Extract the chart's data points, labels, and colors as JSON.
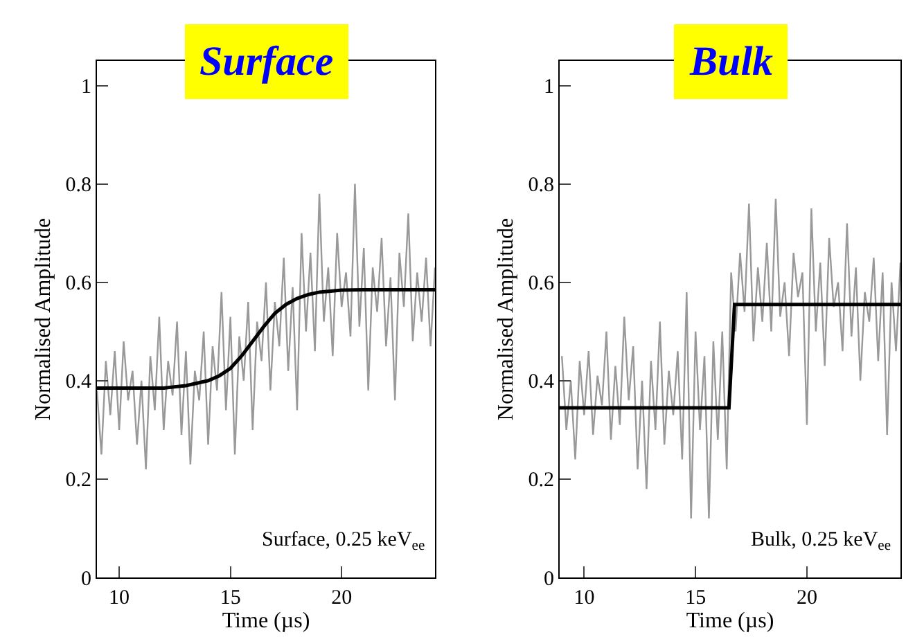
{
  "chart_data": [
    {
      "type": "line",
      "title": "Surface",
      "xlabel": "Time (µs)",
      "ylabel": "Normalised Amplitude",
      "annotations": [
        "Surface, 0.25 keV$_{ee}$"
      ],
      "xlim": [
        9,
        24.2
      ],
      "xticks": [
        10,
        15,
        20
      ],
      "ylim": [
        0,
        1.05
      ],
      "yticks": [
        0,
        0.2,
        0.4,
        0.6,
        0.8,
        1
      ],
      "grid": false,
      "marker": "none",
      "line_style": "solid",
      "series": [
        {
          "color": "#999999",
          "x": [
            9.0,
            9.2,
            9.4,
            9.6,
            9.8,
            10.0,
            10.2,
            10.4,
            10.6,
            10.8,
            11.0,
            11.2,
            11.4,
            11.6,
            11.8,
            12.0,
            12.2,
            12.4,
            12.6,
            12.8,
            13.0,
            13.2,
            13.4,
            13.6,
            13.8,
            14.0,
            14.2,
            14.4,
            14.6,
            14.8,
            15.0,
            15.2,
            15.4,
            15.6,
            15.8,
            16.0,
            16.2,
            16.4,
            16.6,
            16.8,
            17.0,
            17.2,
            17.4,
            17.6,
            17.8,
            18.0,
            18.2,
            18.4,
            18.6,
            18.8,
            19.0,
            19.2,
            19.4,
            19.6,
            19.8,
            20.0,
            20.2,
            20.4,
            20.6,
            20.8,
            21.0,
            21.2,
            21.4,
            21.6,
            21.8,
            22.0,
            22.2,
            22.4,
            22.6,
            22.8,
            23.0,
            23.2,
            23.4,
            23.6,
            23.8,
            24.0,
            24.2
          ],
          "values": [
            0.38,
            0.25,
            0.44,
            0.33,
            0.46,
            0.3,
            0.48,
            0.36,
            0.42,
            0.27,
            0.4,
            0.22,
            0.45,
            0.34,
            0.53,
            0.3,
            0.44,
            0.37,
            0.52,
            0.29,
            0.46,
            0.23,
            0.42,
            0.36,
            0.5,
            0.27,
            0.47,
            0.38,
            0.58,
            0.34,
            0.53,
            0.25,
            0.49,
            0.4,
            0.56,
            0.3,
            0.52,
            0.44,
            0.6,
            0.38,
            0.56,
            0.47,
            0.65,
            0.42,
            0.59,
            0.34,
            0.7,
            0.5,
            0.66,
            0.46,
            0.78,
            0.52,
            0.63,
            0.45,
            0.7,
            0.55,
            0.62,
            0.49,
            0.8,
            0.51,
            0.67,
            0.38,
            0.63,
            0.54,
            0.69,
            0.47,
            0.61,
            0.36,
            0.66,
            0.55,
            0.74,
            0.48,
            0.62,
            0.52,
            0.65,
            0.47,
            0.63
          ]
        },
        {
          "color": "#000000",
          "x": [
            9,
            12,
            13,
            14,
            14.5,
            15,
            15.5,
            16,
            16.5,
            17,
            17.5,
            18,
            18.5,
            19,
            20,
            21,
            24.2
          ],
          "values": [
            0.385,
            0.385,
            0.39,
            0.4,
            0.41,
            0.425,
            0.45,
            0.48,
            0.51,
            0.537,
            0.555,
            0.567,
            0.575,
            0.58,
            0.584,
            0.585,
            0.585
          ]
        }
      ]
    },
    {
      "type": "line",
      "title": "Bulk",
      "xlabel": "Time (µs)",
      "ylabel": "Normalised Amplitude",
      "annotations": [
        "Bulk, 0.25 keV$_{ee}$"
      ],
      "xlim": [
        8.9,
        24.2
      ],
      "xticks": [
        10,
        15,
        20
      ],
      "ylim": [
        0,
        1.05
      ],
      "yticks": [
        0,
        0.2,
        0.4,
        0.6,
        0.8,
        1
      ],
      "grid": false,
      "marker": "none",
      "line_style": "solid",
      "series": [
        {
          "color": "#999999",
          "x": [
            9.0,
            9.2,
            9.4,
            9.6,
            9.8,
            10.0,
            10.2,
            10.4,
            10.6,
            10.8,
            11.0,
            11.2,
            11.4,
            11.6,
            11.8,
            12.0,
            12.2,
            12.4,
            12.6,
            12.8,
            13.0,
            13.2,
            13.4,
            13.6,
            13.8,
            14.0,
            14.2,
            14.4,
            14.6,
            14.8,
            15.0,
            15.2,
            15.4,
            15.6,
            15.8,
            16.0,
            16.2,
            16.4,
            16.6,
            16.8,
            17.0,
            17.2,
            17.4,
            17.6,
            17.8,
            18.0,
            18.2,
            18.4,
            18.6,
            18.8,
            19.0,
            19.2,
            19.4,
            19.6,
            19.8,
            20.0,
            20.2,
            20.4,
            20.6,
            20.8,
            21.0,
            21.2,
            21.4,
            21.6,
            21.8,
            22.0,
            22.2,
            22.4,
            22.6,
            22.8,
            23.0,
            23.2,
            23.4,
            23.6,
            23.8,
            24.0,
            24.2
          ],
          "values": [
            0.45,
            0.3,
            0.4,
            0.24,
            0.44,
            0.33,
            0.46,
            0.29,
            0.41,
            0.35,
            0.5,
            0.28,
            0.43,
            0.31,
            0.53,
            0.36,
            0.47,
            0.22,
            0.4,
            0.18,
            0.44,
            0.3,
            0.52,
            0.27,
            0.42,
            0.33,
            0.46,
            0.24,
            0.58,
            0.12,
            0.5,
            0.3,
            0.45,
            0.12,
            0.48,
            0.28,
            0.5,
            0.22,
            0.62,
            0.5,
            0.66,
            0.54,
            0.76,
            0.48,
            0.63,
            0.52,
            0.68,
            0.5,
            0.77,
            0.53,
            0.6,
            0.45,
            0.66,
            0.57,
            0.62,
            0.31,
            0.75,
            0.5,
            0.64,
            0.43,
            0.69,
            0.55,
            0.6,
            0.46,
            0.72,
            0.49,
            0.63,
            0.4,
            0.58,
            0.52,
            0.65,
            0.44,
            0.62,
            0.29,
            0.6,
            0.46,
            0.64
          ]
        },
        {
          "color": "#000000",
          "x": [
            8.9,
            16.5,
            16.75,
            24.2
          ],
          "values": [
            0.345,
            0.345,
            0.555,
            0.555
          ]
        }
      ]
    }
  ]
}
